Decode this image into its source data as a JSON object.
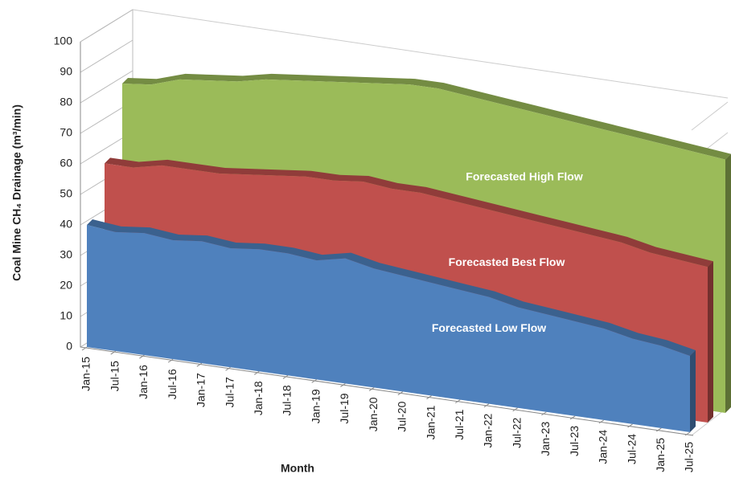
{
  "chart_data": {
    "type": "area3d",
    "y_label": "Coal Mine CH₄ Drainage (m³/min)",
    "x_label": "Month",
    "categories": [
      "Jan-15",
      "Jul-15",
      "Jan-16",
      "Jul-16",
      "Jan-17",
      "Jul-17",
      "Jan-18",
      "Jul-18",
      "Jan-19",
      "Jul-19",
      "Jan-20",
      "Jul-20",
      "Jan-21",
      "Jul-21",
      "Jan-22",
      "Jul-22",
      "Jan-23",
      "Jul-23",
      "Jan-24",
      "Jul-24",
      "Jan-25",
      "Jul-25"
    ],
    "series": [
      {
        "name": "Forecasted Low Flow",
        "color": "#4f81bd",
        "values": [
          40,
          39,
          40,
          39,
          40,
          39,
          40,
          40,
          39,
          41,
          39,
          38,
          37,
          36,
          35,
          33,
          32,
          31,
          30,
          28,
          27,
          25
        ]
      },
      {
        "name": "Forecasted Best Flow",
        "color": "#c0504d",
        "values": [
          57,
          57,
          59,
          59,
          59,
          60,
          61,
          62,
          62,
          63,
          62,
          62,
          61,
          60,
          59,
          58,
          57,
          56,
          55,
          53,
          52,
          51
        ]
      },
      {
        "name": "Forecasted High Flow",
        "color": "#9bbb59",
        "values": [
          80,
          81,
          84,
          85,
          86,
          88,
          89,
          90,
          91,
          92,
          93,
          93,
          92,
          91,
          90,
          89,
          88,
          87,
          86,
          85,
          84,
          83
        ]
      }
    ],
    "ylim": [
      0,
      100
    ],
    "yticks": [
      0,
      10,
      20,
      30,
      40,
      50,
      60,
      70,
      80,
      90,
      100
    ],
    "grid": true
  }
}
